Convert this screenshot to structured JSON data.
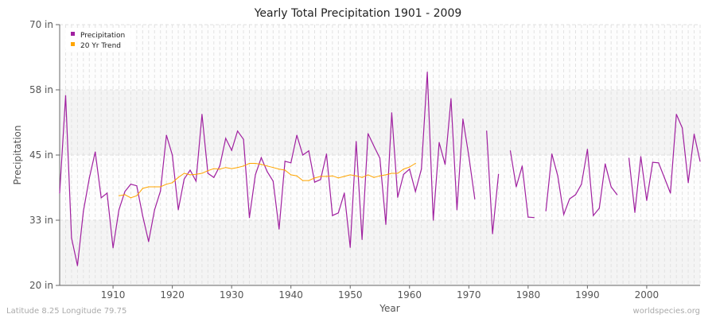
{
  "chart_data": {
    "type": "line",
    "title": "Yearly Total Precipitation 1901 - 2009",
    "xlabel": "Year",
    "ylabel": "Precipitation",
    "xlim": [
      1901,
      2009
    ],
    "ylim": [
      20,
      70
    ],
    "y_ticks": [
      {
        "value": 20,
        "label": "20 in"
      },
      {
        "value": 32.5,
        "label": "33 in"
      },
      {
        "value": 45,
        "label": "45 in"
      },
      {
        "value": 57.5,
        "label": "58 in"
      },
      {
        "value": 70,
        "label": "70 in"
      }
    ],
    "x_ticks": [
      1910,
      1920,
      1930,
      1940,
      1950,
      1960,
      1970,
      1980,
      1990,
      2000
    ],
    "grid": true,
    "legend_position": "top-left",
    "series": [
      {
        "name": "Precipitation",
        "color": "#a020a0",
        "start_year": 1901,
        "values": [
          37.7,
          56.4,
          29.1,
          23.8,
          34.2,
          40.6,
          45.6,
          36.8,
          37.7,
          27.2,
          34.5,
          38.0,
          39.4,
          39.1,
          33.3,
          28.4,
          34.5,
          38.1,
          48.8,
          45.0,
          34.5,
          40.4,
          42.1,
          40.0,
          52.8,
          41.5,
          40.7,
          42.9,
          48.2,
          45.9,
          49.6,
          48.0,
          33.0,
          41.2,
          44.5,
          41.8,
          40.0,
          30.8,
          43.8,
          43.5,
          48.8,
          45.0,
          45.8,
          39.8,
          40.3,
          45.2,
          33.4,
          33.9,
          37.7,
          27.3,
          47.6,
          28.8,
          49.1,
          46.7,
          44.4,
          31.7,
          53.1,
          36.9,
          41.3,
          42.3,
          38.0,
          42.3,
          60.9,
          32.5,
          47.4,
          43.2,
          55.8,
          34.5,
          51.9,
          44.8,
          36.6,
          null,
          49.6,
          29.9,
          41.3,
          null,
          45.8,
          38.9,
          42.9,
          33.1,
          33.0,
          null,
          34.3,
          45.2,
          41.0,
          33.6,
          36.6,
          37.4,
          39.4,
          46.1,
          33.4,
          34.8,
          43.3,
          38.9,
          37.4,
          null,
          44.4,
          34.0,
          44.7,
          36.3,
          43.6,
          43.5,
          40.6,
          37.7,
          52.8,
          50.2,
          39.7,
          49.0,
          43.8
        ]
      },
      {
        "name": "20 Yr Trend",
        "color": "#ffa500",
        "start_year": 1911,
        "values": [
          37.2,
          37.4,
          36.8,
          37.2,
          38.6,
          38.9,
          38.9,
          38.9,
          39.4,
          39.7,
          40.7,
          41.5,
          41.2,
          41.3,
          41.5,
          42.0,
          42.4,
          42.3,
          42.6,
          42.4,
          42.6,
          42.9,
          43.4,
          43.4,
          43.2,
          42.9,
          42.6,
          42.3,
          42.1,
          41.2,
          41.0,
          40.1,
          40.1,
          40.6,
          40.9,
          40.9,
          41.0,
          40.6,
          40.9,
          41.2,
          41.0,
          40.7,
          41.2,
          40.7,
          41.0,
          41.2,
          41.5,
          41.5,
          42.3,
          42.7,
          43.4
        ]
      }
    ]
  },
  "footer": {
    "location": "Latitude 8.25 Longitude 79.75",
    "site": "worldspecies.org"
  }
}
